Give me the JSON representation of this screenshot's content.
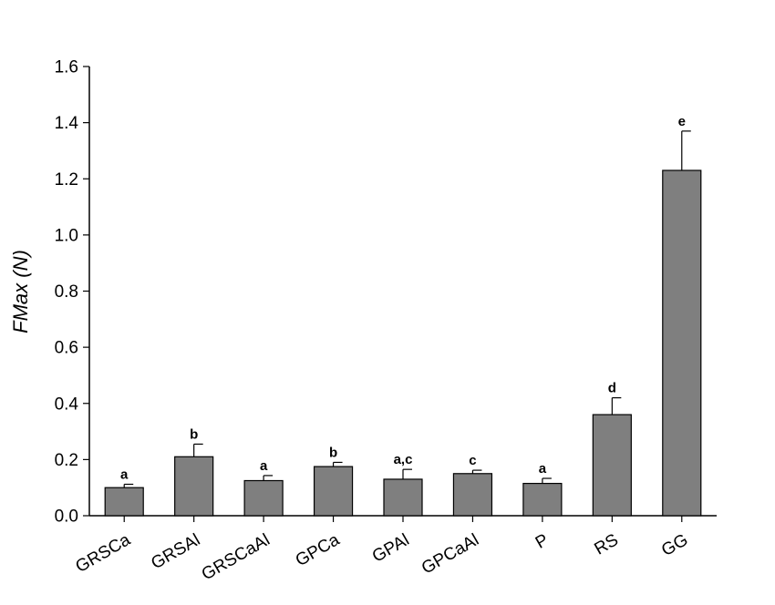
{
  "colors": {
    "bar": "#7f7f7f",
    "stroke": "#000000"
  },
  "chart_data": {
    "type": "bar",
    "title": "",
    "xlabel": "",
    "ylabel": "FMax (N)",
    "ylim": [
      0,
      1.6
    ],
    "yticks": [
      "0.0",
      "0.2",
      "0.4",
      "0.6",
      "0.8",
      "1.0",
      "1.2",
      "1.4",
      "1.6"
    ],
    "categories": [
      "GRSCa",
      "GRSAl",
      "GRSCaAl",
      "GPCa",
      "GPAl",
      "GPCaAl",
      "P",
      "RS",
      "GG"
    ],
    "values": [
      0.1,
      0.21,
      0.125,
      0.175,
      0.13,
      0.15,
      0.115,
      0.36,
      1.23
    ],
    "errors": [
      0.012,
      0.045,
      0.018,
      0.015,
      0.035,
      0.012,
      0.018,
      0.06,
      0.14
    ],
    "significance": [
      "a",
      "b",
      "a",
      "b",
      "a,c",
      "c",
      "a",
      "d",
      "e"
    ],
    "grid": false,
    "legend": "none"
  }
}
